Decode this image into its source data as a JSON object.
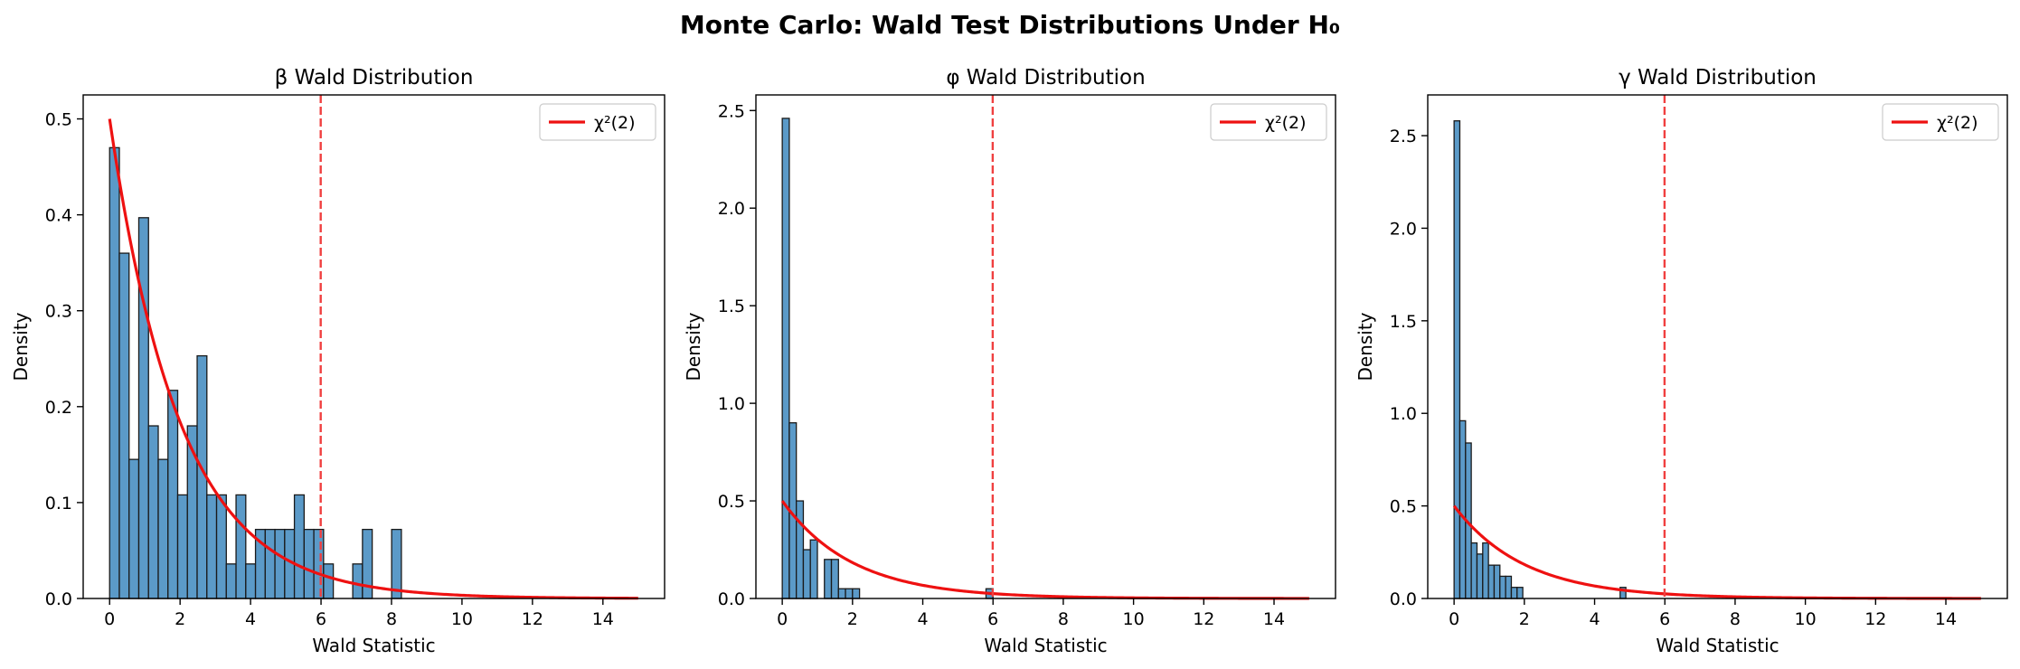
{
  "figure": {
    "suptitle": "Monte Carlo: Wald Test Distributions Under H₀"
  },
  "colors": {
    "bar_fill": "#5b9ac8",
    "bar_edge": "#1a1a1a",
    "curve": "#ee1111",
    "critical_line": "#f04040",
    "axes": "#000000"
  },
  "chart_data": [
    {
      "type": "bar",
      "title": "β Wald Distribution",
      "xlabel": "Wald Statistic",
      "ylabel": "Density",
      "xlim": [
        -0.75,
        15.75
      ],
      "ylim": [
        0,
        0.525
      ],
      "xticks": [
        0,
        2,
        4,
        6,
        8,
        10,
        12,
        14
      ],
      "yticks": [
        0.0,
        0.1,
        0.2,
        0.3,
        0.4,
        0.5
      ],
      "ytick_labels": [
        "0.0",
        "0.1",
        "0.2",
        "0.3",
        "0.4",
        "0.5"
      ],
      "grid": false,
      "legend": {
        "placement": "top-right",
        "entries": [
          "χ²(2)"
        ]
      },
      "histogram": {
        "bin_width": 0.276,
        "bin_start": 0.0,
        "values": [
          0.47,
          0.36,
          0.145,
          0.397,
          0.18,
          0.145,
          0.217,
          0.108,
          0.18,
          0.253,
          0.108,
          0.108,
          0.036,
          0.108,
          0.036,
          0.072,
          0.072,
          0.072,
          0.072,
          0.108,
          0.072,
          0.072,
          0.036,
          0,
          0,
          0.036,
          0.072,
          0,
          0,
          0.072
        ]
      },
      "reference_curve": {
        "name": "χ²(2)",
        "function": "chi2_pdf_df2",
        "x_range": [
          0,
          15
        ]
      },
      "critical_value": 5.991
    },
    {
      "type": "bar",
      "title": "φ Wald Distribution",
      "xlabel": "Wald Statistic",
      "ylabel": "Density",
      "xlim": [
        -0.75,
        15.75
      ],
      "ylim": [
        0,
        2.58
      ],
      "xticks": [
        0,
        2,
        4,
        6,
        8,
        10,
        12,
        14
      ],
      "yticks": [
        0.0,
        0.5,
        1.0,
        1.5,
        2.0,
        2.5
      ],
      "ytick_labels": [
        "0.0",
        "0.5",
        "1.0",
        "1.5",
        "2.0",
        "2.5"
      ],
      "grid": false,
      "legend": {
        "placement": "top-right",
        "entries": [
          "χ²(2)"
        ]
      },
      "histogram": {
        "bin_width": 0.2,
        "bin_start": 0.0,
        "values": [
          2.46,
          0.9,
          0.5,
          0.25,
          0.3,
          0,
          0.2,
          0.2,
          0.05,
          0.05,
          0.05,
          0,
          0,
          0,
          0,
          0,
          0,
          0,
          0,
          0,
          0,
          0,
          0,
          0,
          0,
          0,
          0,
          0,
          0,
          0.05
        ]
      },
      "reference_curve": {
        "name": "χ²(2)",
        "function": "chi2_pdf_df2",
        "x_range": [
          0,
          15
        ]
      },
      "critical_value": 5.991
    },
    {
      "type": "bar",
      "title": "γ Wald Distribution",
      "xlabel": "Wald Statistic",
      "ylabel": "Density",
      "xlim": [
        -0.75,
        15.75
      ],
      "ylim": [
        0,
        2.72
      ],
      "xticks": [
        0,
        2,
        4,
        6,
        8,
        10,
        12,
        14
      ],
      "yticks": [
        0.0,
        0.5,
        1.0,
        1.5,
        2.0,
        2.5
      ],
      "ytick_labels": [
        "0.0",
        "0.5",
        "1.0",
        "1.5",
        "2.0",
        "2.5"
      ],
      "grid": false,
      "legend": {
        "placement": "top-right",
        "entries": [
          "χ²(2)"
        ]
      },
      "histogram": {
        "bin_width": 0.163,
        "bin_start": 0.0,
        "values": [
          2.58,
          0.96,
          0.84,
          0.3,
          0.24,
          0.3,
          0.18,
          0.18,
          0.12,
          0.12,
          0.06,
          0.06,
          0,
          0,
          0,
          0,
          0,
          0,
          0,
          0,
          0,
          0,
          0,
          0,
          0,
          0,
          0,
          0,
          0,
          0.06
        ]
      },
      "reference_curve": {
        "name": "χ²(2)",
        "function": "chi2_pdf_df2",
        "x_range": [
          0,
          15
        ]
      },
      "critical_value": 5.991
    }
  ]
}
